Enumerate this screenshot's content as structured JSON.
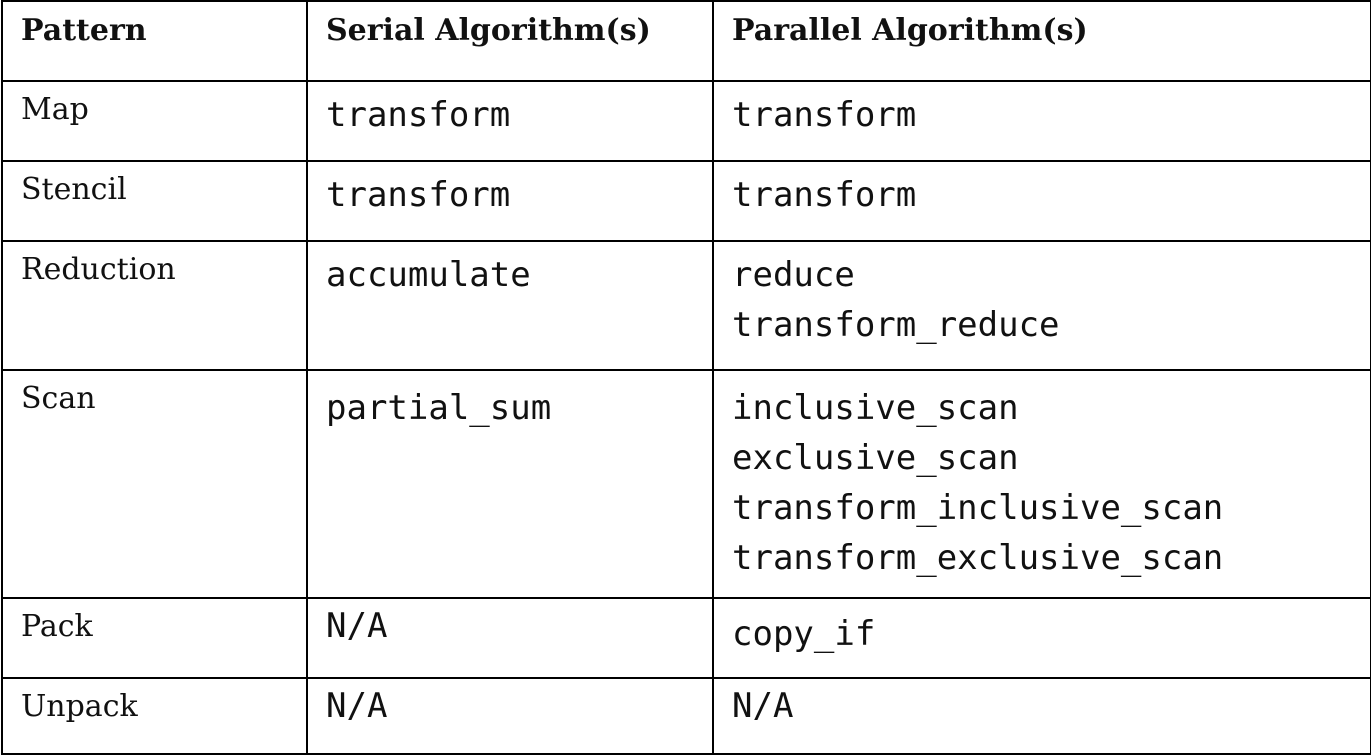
{
  "table": {
    "headers": [
      "Pattern",
      "Serial Algorithm(s)",
      "Parallel Algorithm(s)"
    ],
    "rows": [
      {
        "pattern": "Map",
        "serial": [
          "transform"
        ],
        "parallel": [
          "transform"
        ]
      },
      {
        "pattern": "Stencil",
        "serial": [
          "transform"
        ],
        "parallel": [
          "transform"
        ]
      },
      {
        "pattern": "Reduction",
        "serial": [
          "accumulate"
        ],
        "parallel": [
          "reduce",
          "transform_reduce"
        ]
      },
      {
        "pattern": "Scan",
        "serial": [
          "partial_sum"
        ],
        "parallel": [
          "inclusive_scan",
          "exclusive_scan",
          "transform_inclusive_scan",
          "transform_exclusive_scan"
        ]
      },
      {
        "pattern": "Pack",
        "serial": [
          "N/A"
        ],
        "parallel": [
          "copy_if"
        ]
      },
      {
        "pattern": "Unpack",
        "serial": [
          "N/A"
        ],
        "parallel": [
          "N/A"
        ]
      }
    ]
  }
}
